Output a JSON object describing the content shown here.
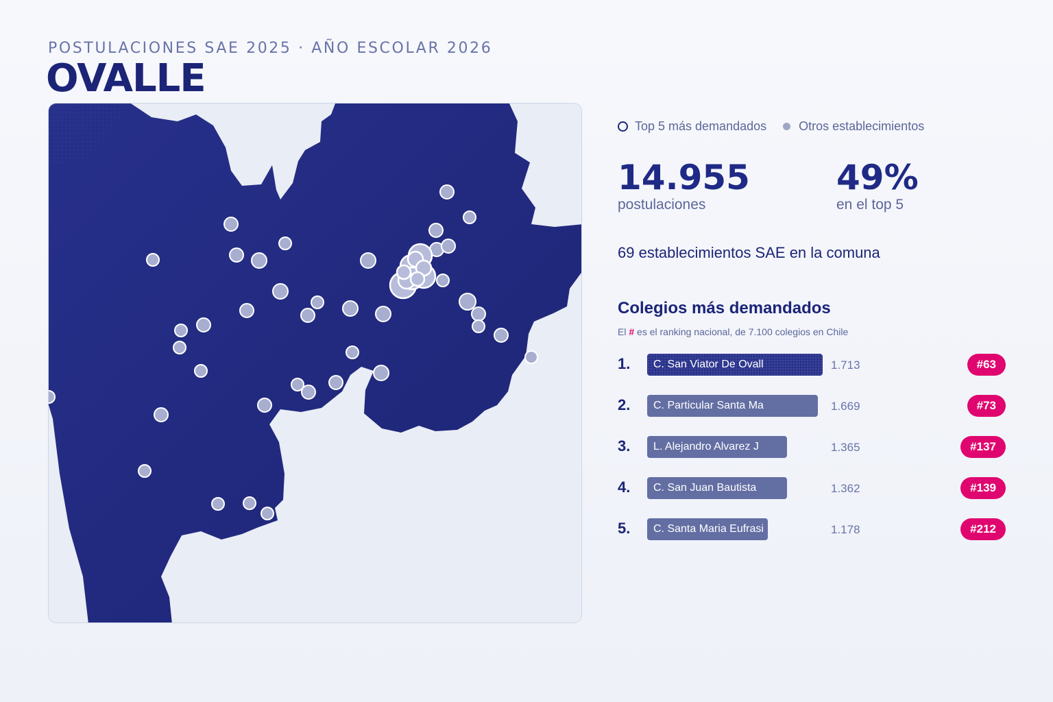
{
  "header": {
    "supertitle": "POSTULACIONES SAE 2025 · AÑO ESCOLAR 2026",
    "title": "OVALLE"
  },
  "colors": {
    "map_fill": "#232b80",
    "map_background": "#e9edf5",
    "accent_badge": "#e0066f",
    "bar_default": "#636ea3",
    "bar_first": "#2b348d",
    "dot_other": "#a0a7c6"
  },
  "legend": {
    "top5_label": "Top 5 más demandados",
    "others_label": "Otros establecimientos"
  },
  "kpis": [
    {
      "value": "14.955",
      "label": "postulaciones"
    },
    {
      "value": "49%",
      "label": "en el top 5"
    }
  ],
  "summary": "69 establecimientos SAE en la comuna",
  "ranking": {
    "title": "Colegios más demandados",
    "note_prefix": "El",
    "note_hash": "#",
    "note_suffix": "es el ranking nacional, de 7.100 colegios en Chile",
    "items": [
      {
        "position": "1.",
        "name": "C. San Viator De Ovall",
        "applications": 1713,
        "applications_label": "1.713",
        "national_rank": "#63"
      },
      {
        "position": "2.",
        "name": "C. Particular Santa Ma",
        "applications": 1669,
        "applications_label": "1.669",
        "national_rank": "#73"
      },
      {
        "position": "3.",
        "name": "L. Alejandro Alvarez J",
        "applications": 1365,
        "applications_label": "1.365",
        "national_rank": "#137"
      },
      {
        "position": "4.",
        "name": "C. San Juan Bautista",
        "applications": 1362,
        "applications_label": "1.362",
        "national_rank": "#139"
      },
      {
        "position": "5.",
        "name": "C. Santa Maria Eufrasi",
        "applications": 1178,
        "applications_label": "1.178",
        "national_rank": "#212"
      }
    ]
  }
}
